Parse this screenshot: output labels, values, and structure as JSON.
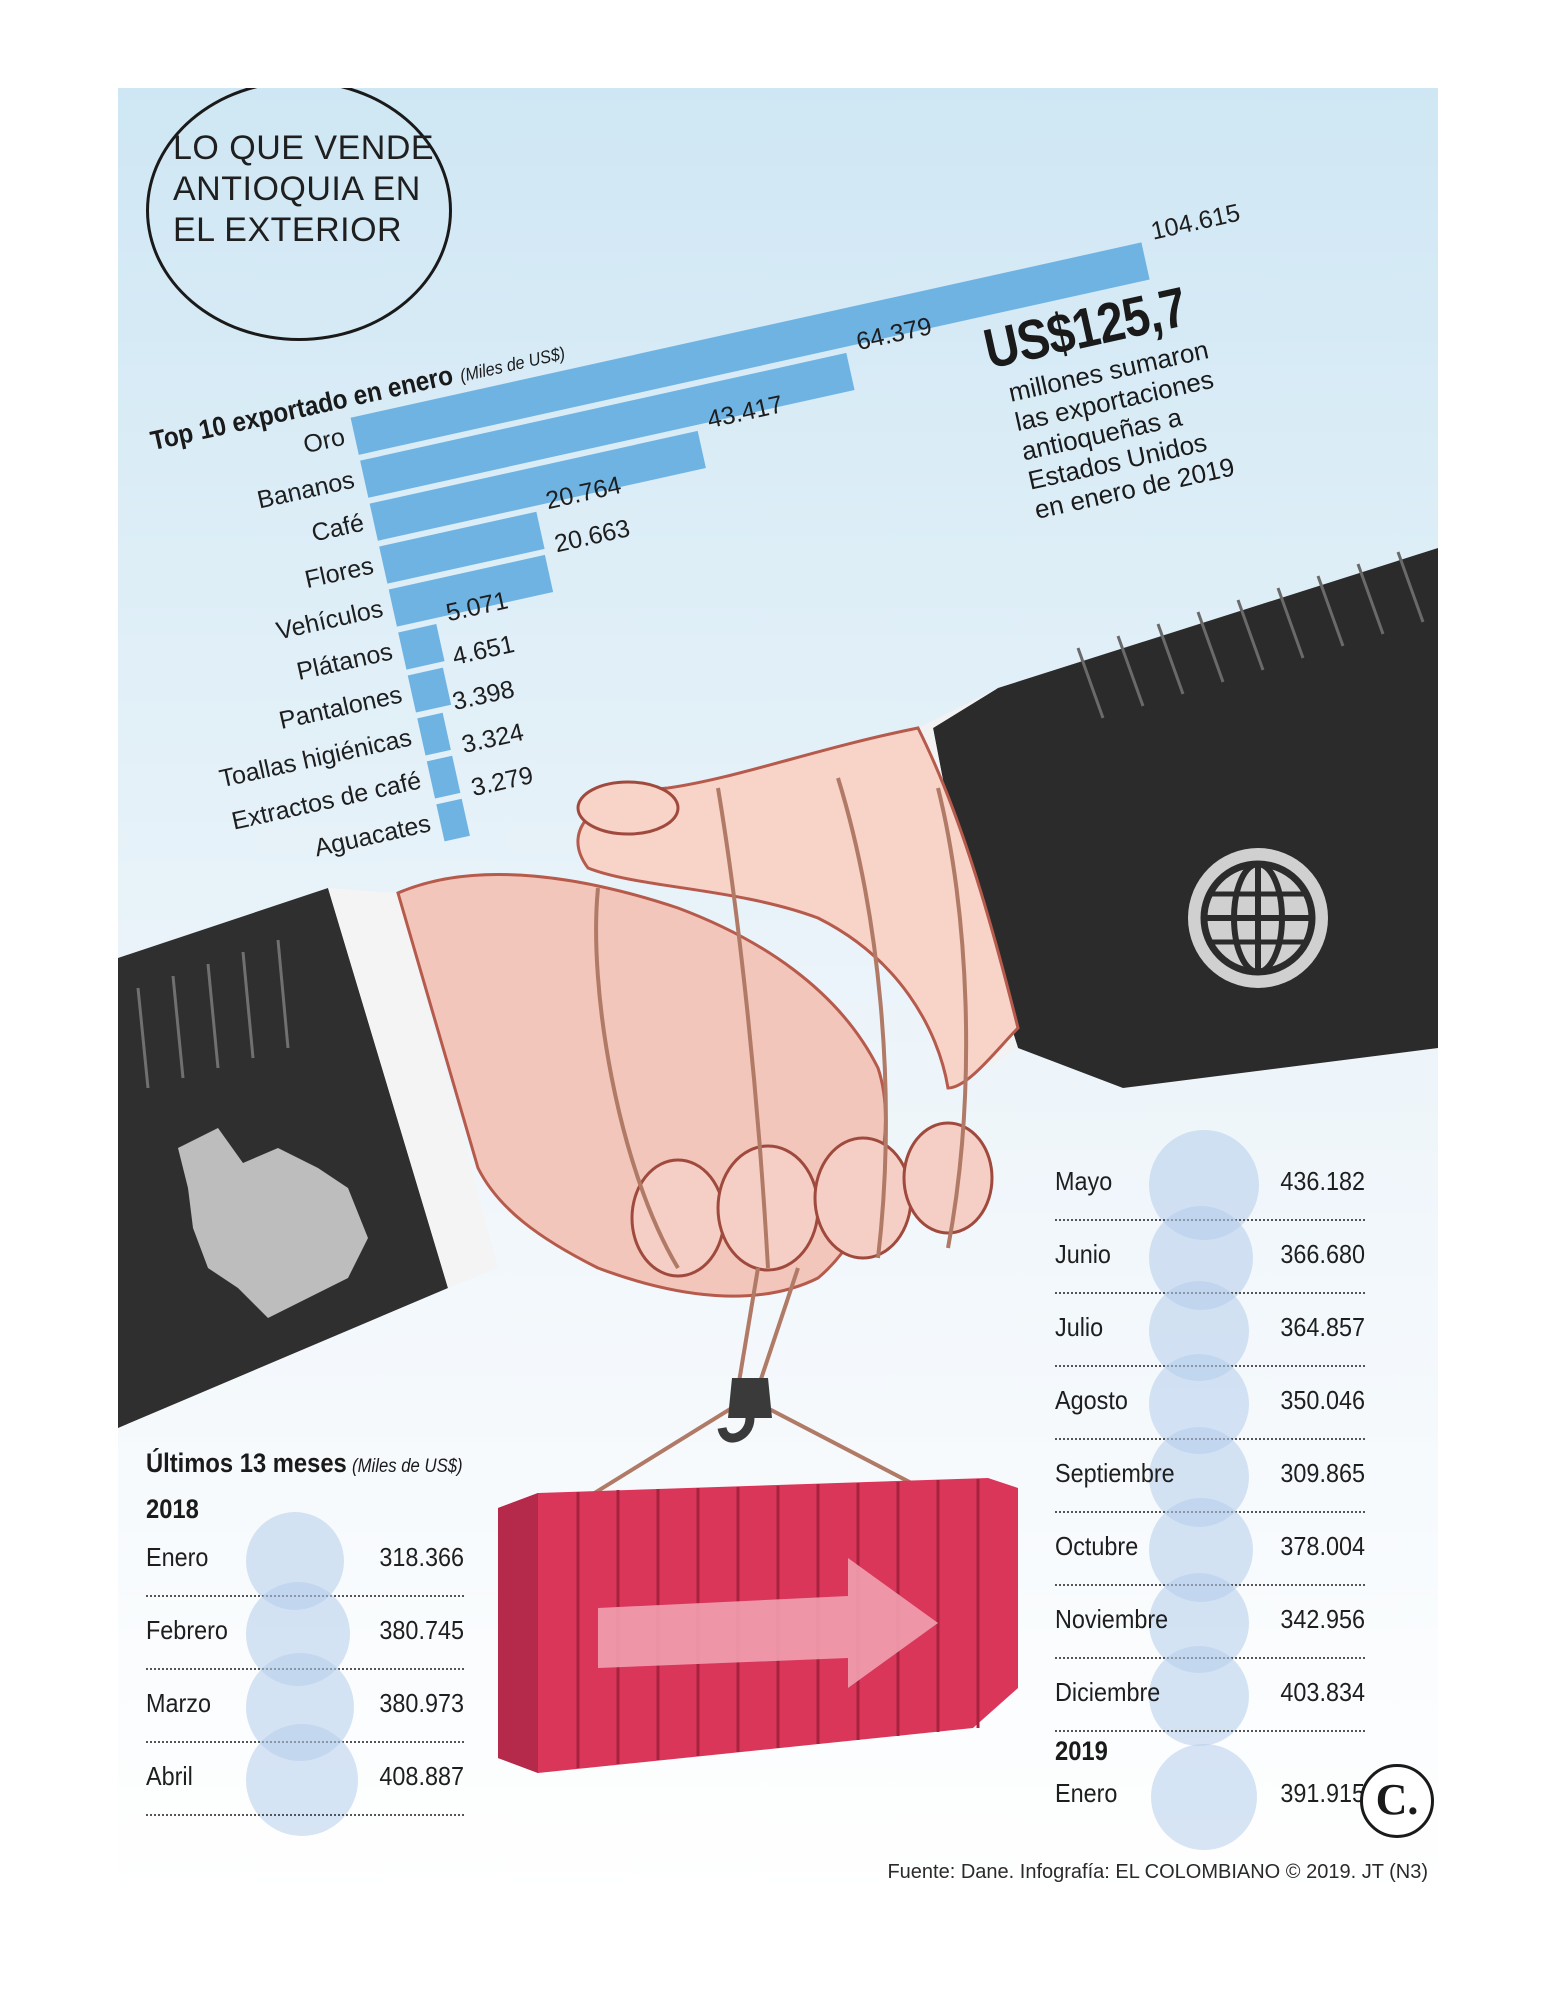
{
  "title": "LO QUE VENDE ANTIOQUIA EN EL EXTERIOR",
  "colors": {
    "bar": "#6fb3e3",
    "container": "#d9365a",
    "sleeve": "#2b2b2b",
    "bubble": "#b4cdeb"
  },
  "top10": {
    "title": "Top 10 exportado en enero",
    "unit": "(Miles de US$)",
    "items": [
      {
        "label": "Oro",
        "value": "104.615"
      },
      {
        "label": "Bananos",
        "value": "64.379"
      },
      {
        "label": "Café",
        "value": "43.417"
      },
      {
        "label": "Flores",
        "value": "20.764"
      },
      {
        "label": "Vehículos",
        "value": "20.663"
      },
      {
        "label": "Plátanos",
        "value": "5.071"
      },
      {
        "label": "Pantalones",
        "value": "4.651"
      },
      {
        "label": "Toallas higiénicas",
        "value": "3.398"
      },
      {
        "label": "Extractos de café",
        "value": "3.324"
      },
      {
        "label": "Aguacates",
        "value": "3.279"
      }
    ]
  },
  "highlight": {
    "amount": "US$125,7",
    "lines": [
      "millones sumaron",
      "las exportaciones",
      "antioqueñas a",
      "Estados Unidos",
      "en enero de 2019"
    ]
  },
  "monthly": {
    "title": "Últimos 13 meses",
    "unit": "(Miles de US$)",
    "left": {
      "year": "2018",
      "rows": [
        {
          "month": "Enero",
          "value": "318.366"
        },
        {
          "month": "Febrero",
          "value": "380.745"
        },
        {
          "month": "Marzo",
          "value": "380.973"
        },
        {
          "month": "Abril",
          "value": "408.887"
        }
      ]
    },
    "right": {
      "rows": [
        {
          "month": "Mayo",
          "value": "436.182"
        },
        {
          "month": "Junio",
          "value": "366.680"
        },
        {
          "month": "Julio",
          "value": "364.857"
        },
        {
          "month": "Agosto",
          "value": "350.046"
        },
        {
          "month": "Septiembre",
          "value": "309.865"
        },
        {
          "month": "Octubre",
          "value": "378.004"
        },
        {
          "month": "Noviembre",
          "value": "342.956"
        },
        {
          "month": "Diciembre",
          "value": "403.834"
        }
      ],
      "year": "2019",
      "last": {
        "month": "Enero",
        "value": "391.915"
      }
    }
  },
  "source": "Fuente: Dane. Infografía: EL COLOMBIANO © 2019. JT (N3)",
  "logo": "C.",
  "chart_data": [
    {
      "type": "bar",
      "title": "Top 10 exportado en enero",
      "ylabel": "(Miles de US$)",
      "categories": [
        "Oro",
        "Bananos",
        "Café",
        "Flores",
        "Vehículos",
        "Plátanos",
        "Pantalones",
        "Toallas higiénicas",
        "Extractos de café",
        "Aguacates"
      ],
      "values": [
        104615,
        64379,
        43417,
        20764,
        20663,
        5071,
        4651,
        3398,
        3324,
        3279
      ],
      "orientation": "horizontal"
    },
    {
      "type": "table",
      "title": "Últimos 13 meses",
      "ylabel": "(Miles de US$)",
      "categories": [
        "Enero 2018",
        "Febrero",
        "Marzo",
        "Abril",
        "Mayo",
        "Junio",
        "Julio",
        "Agosto",
        "Septiembre",
        "Octubre",
        "Noviembre",
        "Diciembre",
        "Enero 2019"
      ],
      "values": [
        318366,
        380745,
        380973,
        408887,
        436182,
        366680,
        364857,
        350046,
        309865,
        378004,
        342956,
        403834,
        391915
      ]
    }
  ]
}
